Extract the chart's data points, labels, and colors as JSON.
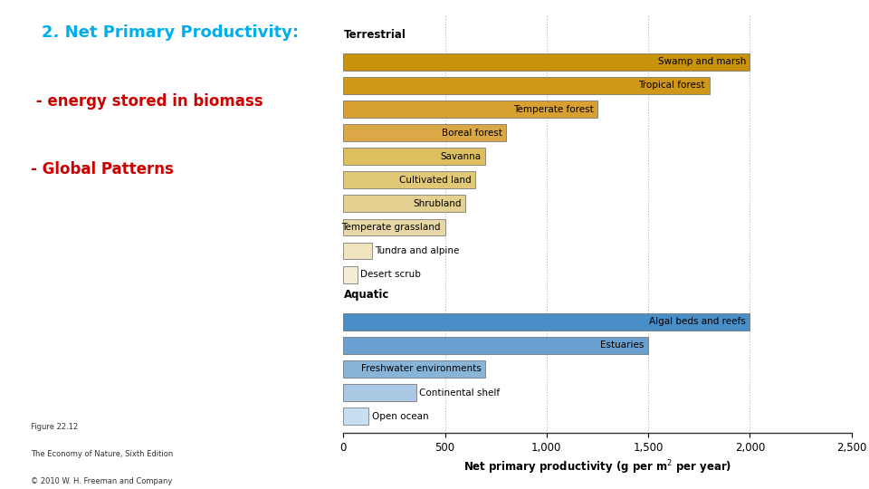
{
  "title": "2. Net Primary Productivity:",
  "subtitle1": " - energy stored in biomass",
  "subtitle2": "- Global Patterns",
  "title_color": "#00AEEF",
  "subtitle_color": "#CC0000",
  "xlabel_latex": "Net primary productivity (g per m$^2$ per year)",
  "xlim": [
    0,
    2500
  ],
  "xticks": [
    0,
    500,
    1000,
    1500,
    2000,
    2500
  ],
  "caption_lines": [
    "Figure 22.12",
    "The Economy of Nature, Sixth Edition",
    "© 2010 W. H. Freeman and Company"
  ],
  "terrestrial_label": "Terrestrial",
  "aquatic_label": "Aquatic",
  "terrestrial_bars": [
    {
      "label": "Swamp and marsh",
      "value": 2000
    },
    {
      "label": "Tropical forest",
      "value": 1800
    },
    {
      "label": "Temperate forest",
      "value": 1250
    },
    {
      "label": "Boreal forest",
      "value": 800
    },
    {
      "label": "Savanna",
      "value": 700
    },
    {
      "label": "Cultivated land",
      "value": 650
    },
    {
      "label": "Shrubland",
      "value": 600
    },
    {
      "label": "Temperate grassland",
      "value": 500
    },
    {
      "label": "Tundra and alpine",
      "value": 140
    },
    {
      "label": "Desert scrub",
      "value": 70
    }
  ],
  "aquatic_bars": [
    {
      "label": "Algal beds and reefs",
      "value": 2000
    },
    {
      "label": "Estuaries",
      "value": 1500
    },
    {
      "label": "Freshwater environments",
      "value": 700
    },
    {
      "label": "Continental shelf",
      "value": 360
    },
    {
      "label": "Open ocean",
      "value": 125
    }
  ],
  "terr_colors": [
    "#C8930A",
    "#D09818",
    "#D8A030",
    "#DBA848",
    "#DEBF60",
    "#E1C878",
    "#E4D090",
    "#E8D8A8",
    "#F0E4C0",
    "#F5EDD8"
  ],
  "aqua_colors": [
    "#4A8EC8",
    "#6AA0D0",
    "#88B4D8",
    "#A8C8E4",
    "#C8DFF2"
  ],
  "bar_edge_color": "#666666",
  "background_color": "#FFFFFF",
  "grid_color": "#BBBBBB",
  "label_fontsize": 7.5,
  "axis_fontsize": 8.5,
  "section_fontsize": 8.5,
  "caption_fontsize": 6.0,
  "title_fontsize": 13,
  "subtitle_fontsize": 12
}
